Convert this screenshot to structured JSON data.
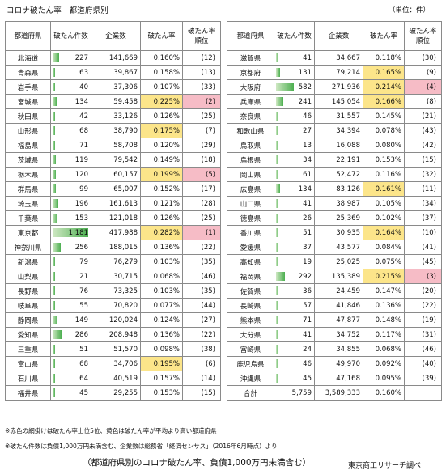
{
  "header": {
    "title": "コロナ破たん率　都道府県別",
    "unit": "（単位：件）"
  },
  "columns": {
    "prefecture": "都道府県",
    "bankruptcies": "破たん件数",
    "companies": "企業数",
    "rate": "破たん率",
    "rank": "破たん率順位"
  },
  "colors": {
    "top5": "#f6bcc6",
    "above_average": "#fce58a",
    "bar": "#4caf50"
  },
  "max_bankruptcies": 1181,
  "left_rows": [
    {
      "pref": "北海道",
      "count": "227",
      "companies": "141,669",
      "rate": "0.160%",
      "rank": "(12)",
      "hl": ""
    },
    {
      "pref": "青森県",
      "count": "63",
      "companies": "39,867",
      "rate": "0.158%",
      "rank": "(13)",
      "hl": ""
    },
    {
      "pref": "岩手県",
      "count": "40",
      "companies": "37,306",
      "rate": "0.107%",
      "rank": "(33)",
      "hl": ""
    },
    {
      "pref": "宮城県",
      "count": "134",
      "companies": "59,458",
      "rate": "0.225%",
      "rank": "(2)",
      "hl": "pink"
    },
    {
      "pref": "秋田県",
      "count": "42",
      "companies": "33,126",
      "rate": "0.126%",
      "rank": "(25)",
      "hl": ""
    },
    {
      "pref": "山形県",
      "count": "68",
      "companies": "38,790",
      "rate": "0.175%",
      "rank": "(7)",
      "hl": "yellow"
    },
    {
      "pref": "福島県",
      "count": "71",
      "companies": "58,708",
      "rate": "0.120%",
      "rank": "(29)",
      "hl": ""
    },
    {
      "pref": "茨城県",
      "count": "119",
      "companies": "79,542",
      "rate": "0.149%",
      "rank": "(18)",
      "hl": ""
    },
    {
      "pref": "栃木県",
      "count": "120",
      "companies": "60,157",
      "rate": "0.199%",
      "rank": "(5)",
      "hl": "pink"
    },
    {
      "pref": "群馬県",
      "count": "99",
      "companies": "65,007",
      "rate": "0.152%",
      "rank": "(17)",
      "hl": ""
    },
    {
      "pref": "埼玉県",
      "count": "196",
      "companies": "161,613",
      "rate": "0.121%",
      "rank": "(28)",
      "hl": ""
    },
    {
      "pref": "千葉県",
      "count": "153",
      "companies": "121,018",
      "rate": "0.126%",
      "rank": "(25)",
      "hl": ""
    },
    {
      "pref": "東京都",
      "count": "1,181",
      "companies": "417,988",
      "rate": "0.282%",
      "rank": "(1)",
      "hl": "pink"
    },
    {
      "pref": "神奈川県",
      "count": "256",
      "companies": "188,015",
      "rate": "0.136%",
      "rank": "(22)",
      "hl": ""
    },
    {
      "pref": "新潟県",
      "count": "79",
      "companies": "76,279",
      "rate": "0.103%",
      "rank": "(35)",
      "hl": ""
    },
    {
      "pref": "山梨県",
      "count": "21",
      "companies": "30,715",
      "rate": "0.068%",
      "rank": "(46)",
      "hl": ""
    },
    {
      "pref": "長野県",
      "count": "76",
      "companies": "73,325",
      "rate": "0.103%",
      "rank": "(35)",
      "hl": ""
    },
    {
      "pref": "岐阜県",
      "count": "55",
      "companies": "70,820",
      "rate": "0.077%",
      "rank": "(44)",
      "hl": ""
    },
    {
      "pref": "静岡県",
      "count": "149",
      "companies": "120,024",
      "rate": "0.124%",
      "rank": "(27)",
      "hl": ""
    },
    {
      "pref": "愛知県",
      "count": "286",
      "companies": "208,948",
      "rate": "0.136%",
      "rank": "(22)",
      "hl": ""
    },
    {
      "pref": "三重県",
      "count": "51",
      "companies": "51,570",
      "rate": "0.098%",
      "rank": "(38)",
      "hl": ""
    },
    {
      "pref": "富山県",
      "count": "68",
      "companies": "34,706",
      "rate": "0.195%",
      "rank": "(6)",
      "hl": "yellow"
    },
    {
      "pref": "石川県",
      "count": "64",
      "companies": "40,519",
      "rate": "0.157%",
      "rank": "(14)",
      "hl": ""
    },
    {
      "pref": "福井県",
      "count": "45",
      "companies": "29,255",
      "rate": "0.153%",
      "rank": "(15)",
      "hl": ""
    }
  ],
  "right_rows": [
    {
      "pref": "滋賀県",
      "count": "41",
      "companies": "34,667",
      "rate": "0.118%",
      "rank": "(30)",
      "hl": ""
    },
    {
      "pref": "京都府",
      "count": "131",
      "companies": "79,214",
      "rate": "0.165%",
      "rank": "(9)",
      "hl": "yellow"
    },
    {
      "pref": "大阪府",
      "count": "582",
      "companies": "271,936",
      "rate": "0.214%",
      "rank": "(4)",
      "hl": "pink"
    },
    {
      "pref": "兵庫県",
      "count": "241",
      "companies": "145,054",
      "rate": "0.166%",
      "rank": "(8)",
      "hl": "yellow"
    },
    {
      "pref": "奈良県",
      "count": "46",
      "companies": "31,557",
      "rate": "0.145%",
      "rank": "(21)",
      "hl": ""
    },
    {
      "pref": "和歌山県",
      "count": "27",
      "companies": "34,394",
      "rate": "0.078%",
      "rank": "(43)",
      "hl": ""
    },
    {
      "pref": "鳥取県",
      "count": "13",
      "companies": "16,088",
      "rate": "0.080%",
      "rank": "(42)",
      "hl": ""
    },
    {
      "pref": "島根県",
      "count": "34",
      "companies": "22,191",
      "rate": "0.153%",
      "rank": "(15)",
      "hl": ""
    },
    {
      "pref": "岡山県",
      "count": "61",
      "companies": "52,472",
      "rate": "0.116%",
      "rank": "(32)",
      "hl": ""
    },
    {
      "pref": "広島県",
      "count": "134",
      "companies": "83,126",
      "rate": "0.161%",
      "rank": "(11)",
      "hl": "yellow"
    },
    {
      "pref": "山口県",
      "count": "41",
      "companies": "38,987",
      "rate": "0.105%",
      "rank": "(34)",
      "hl": ""
    },
    {
      "pref": "徳島県",
      "count": "26",
      "companies": "25,369",
      "rate": "0.102%",
      "rank": "(37)",
      "hl": ""
    },
    {
      "pref": "香川県",
      "count": "51",
      "companies": "30,935",
      "rate": "0.164%",
      "rank": "(10)",
      "hl": "yellow"
    },
    {
      "pref": "愛媛県",
      "count": "37",
      "companies": "43,577",
      "rate": "0.084%",
      "rank": "(41)",
      "hl": ""
    },
    {
      "pref": "高知県",
      "count": "19",
      "companies": "25,025",
      "rate": "0.075%",
      "rank": "(45)",
      "hl": ""
    },
    {
      "pref": "福岡県",
      "count": "292",
      "companies": "135,389",
      "rate": "0.215%",
      "rank": "(3)",
      "hl": "pink"
    },
    {
      "pref": "佐賀県",
      "count": "36",
      "companies": "24,459",
      "rate": "0.147%",
      "rank": "(20)",
      "hl": ""
    },
    {
      "pref": "長崎県",
      "count": "57",
      "companies": "41,846",
      "rate": "0.136%",
      "rank": "(22)",
      "hl": ""
    },
    {
      "pref": "熊本県",
      "count": "71",
      "companies": "47,877",
      "rate": "0.148%",
      "rank": "(19)",
      "hl": ""
    },
    {
      "pref": "大分県",
      "count": "41",
      "companies": "34,752",
      "rate": "0.117%",
      "rank": "(31)",
      "hl": ""
    },
    {
      "pref": "宮崎県",
      "count": "24",
      "companies": "34,855",
      "rate": "0.068%",
      "rank": "(46)",
      "hl": ""
    },
    {
      "pref": "鹿児島県",
      "count": "46",
      "companies": "49,970",
      "rate": "0.092%",
      "rank": "(40)",
      "hl": ""
    },
    {
      "pref": "沖縄県",
      "count": "45",
      "companies": "47,168",
      "rate": "0.095%",
      "rank": "(39)",
      "hl": ""
    }
  ],
  "total": {
    "label": "合計",
    "count": "5,759",
    "companies": "3,589,333",
    "rate": "0.160%",
    "rank": ""
  },
  "footer": {
    "note1": "※赤色の網掛けは破たん率上位5位、黄色は破たん率が平均より高い都道府県",
    "note2": "※破たん件数は負債1,000万円未満含む、企業数は総務省「経済センサス」（2016年6月時点）より",
    "caption": "（都道府県別のコロナ破たん率、負債1,000万円未満含む）",
    "credit": "東京商工リサーチ調べ"
  }
}
